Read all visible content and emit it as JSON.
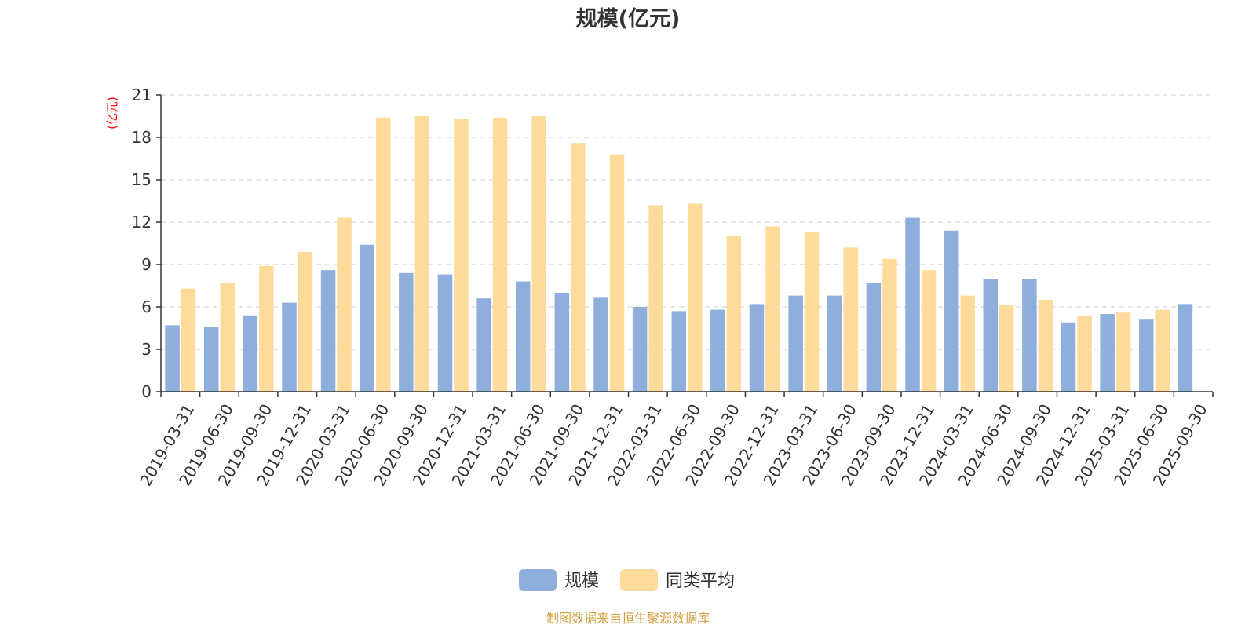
{
  "chart_data": {
    "type": "bar",
    "title": "规模(亿元)",
    "ylabel": "(亿元)",
    "ylim": [
      0,
      21
    ],
    "yticks": [
      0,
      3,
      6,
      9,
      12,
      15,
      18,
      21
    ],
    "grid": true,
    "legend_position": "bottom-center",
    "categories": [
      "2019-03-31",
      "2019-06-30",
      "2019-09-30",
      "2019-12-31",
      "2020-03-31",
      "2020-06-30",
      "2020-09-30",
      "2020-12-31",
      "2021-03-31",
      "2021-06-30",
      "2021-09-30",
      "2021-12-31",
      "2022-03-31",
      "2022-06-30",
      "2022-09-30",
      "2022-12-31",
      "2023-03-31",
      "2023-06-30",
      "2023-09-30",
      "2023-12-31",
      "2024-03-31",
      "2024-06-30",
      "2024-09-30",
      "2024-12-31",
      "2025-03-31",
      "2025-06-30",
      "2025-09-30"
    ],
    "series": [
      {
        "name": "规模",
        "color": "#8eaedb",
        "values": [
          4.7,
          4.6,
          5.4,
          6.3,
          8.6,
          10.4,
          8.4,
          8.3,
          6.6,
          7.8,
          7.0,
          6.7,
          6.0,
          5.7,
          5.8,
          6.2,
          6.8,
          6.8,
          7.7,
          12.3,
          11.4,
          8.0,
          8.0,
          4.9,
          5.5,
          5.1,
          6.2
        ]
      },
      {
        "name": "同类平均",
        "color": "#fedb9b",
        "values": [
          7.3,
          7.7,
          8.9,
          9.9,
          12.3,
          19.4,
          19.5,
          19.3,
          19.4,
          19.5,
          17.6,
          16.8,
          13.2,
          13.3,
          11.0,
          11.7,
          11.3,
          10.2,
          9.4,
          8.6,
          6.8,
          6.1,
          6.5,
          5.4,
          5.6,
          5.8,
          null
        ]
      }
    ]
  },
  "source_note": "制图数据来自恒生聚源数据库",
  "colors": {
    "axis": "#333333",
    "grid": "#cccccc",
    "unit": "#ff0000",
    "source": "#d4a040"
  }
}
